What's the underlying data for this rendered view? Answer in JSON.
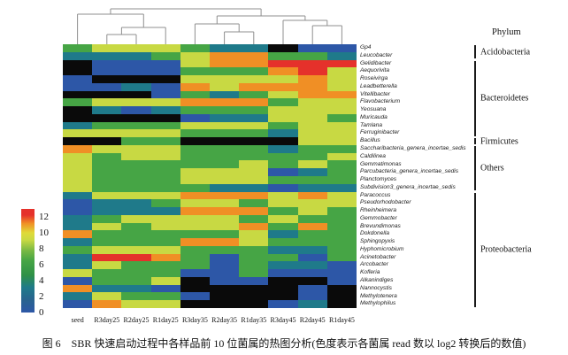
{
  "figure": {
    "caption": "图 6　SBR 快速启动过程中各样品前 10 位菌属的热图分析(色度表示各菌属 read 数以 log2 转换后的数值)",
    "phylum_header": "Phylum"
  },
  "chart_data": {
    "type": "heatmap",
    "title": "",
    "value_note": "cell color = log2-transformed read count; black = 0 / absent",
    "columns": [
      "seed",
      "R3day25",
      "R2day25",
      "R1day25",
      "R3day35",
      "R2day35",
      "R1day35",
      "R3day45",
      "R2day45",
      "R1day45"
    ],
    "rows": [
      "Gp4",
      "Leucobacter",
      "Gelidibacter",
      "Aequorivita",
      "Roseivirga",
      "Leadbetterella",
      "Vitellibacter",
      "Flavobacterium",
      "Yeosuana",
      "Muricauda",
      "Tamlana",
      "Ferruginibacter",
      "Bacillus",
      "Saccharibacteria_genera_incertae_sedis",
      "Caldilinea",
      "Gemmatimonas",
      "Parcubacteria_genera_incertae_sedis",
      "Planctomyces",
      "Subdivision3_genera_incertae_sedis",
      "Paracoccus",
      "Pseudorhodobacter",
      "Rheinheimera",
      "Gemmobacter",
      "Brevundimonas",
      "Dokdonella",
      "Sphingopyxis",
      "Hyphomicrobium",
      "Acinetobacter",
      "Arcobacter",
      "Kofleria",
      "Alkanindiges",
      "Nannocystis",
      "Methylotenera",
      "Methylophilus"
    ],
    "phyla": [
      {
        "label": "Acidobacteria",
        "start": 0,
        "end": 1
      },
      {
        "label": "Bacteroidetes",
        "start": 2,
        "end": 11
      },
      {
        "label": "Firmicutes",
        "start": 12,
        "end": 12
      },
      {
        "label": "Others",
        "start": 13,
        "end": 18
      },
      {
        "label": "Proteobacteria",
        "start": 19,
        "end": 33
      }
    ],
    "palette": {
      "K": "#0a0a0a",
      "B": "#2d57a7",
      "T": "#1f7a8a",
      "G": "#46a545",
      "YG": "#c8d943",
      "O": "#f08f25",
      "R": "#e5312b"
    },
    "value_bins": {
      "K": 0,
      "B": 1,
      "T": 3,
      "G": 6,
      "YG": 9,
      "O": 11,
      "R": 12.5
    },
    "cells": [
      [
        "G",
        "YG",
        "YG",
        "YG",
        "G",
        "T",
        "T",
        "K",
        "B",
        "B"
      ],
      [
        "T",
        "T",
        "T",
        "G",
        "YG",
        "O",
        "O",
        "G",
        "G",
        "T"
      ],
      [
        "K",
        "B",
        "B",
        "B",
        "YG",
        "O",
        "O",
        "R",
        "R",
        "R"
      ],
      [
        "K",
        "B",
        "B",
        "B",
        "G",
        "G",
        "G",
        "O",
        "R",
        "YG"
      ],
      [
        "B",
        "K",
        "K",
        "K",
        "YG",
        "YG",
        "YG",
        "YG",
        "O",
        "YG"
      ],
      [
        "B",
        "B",
        "T",
        "B",
        "O",
        "YG",
        "O",
        "O",
        "O",
        "YG"
      ],
      [
        "K",
        "K",
        "K",
        "B",
        "G",
        "T",
        "G",
        "YG",
        "O",
        "O"
      ],
      [
        "G",
        "YG",
        "YG",
        "YG",
        "O",
        "O",
        "O",
        "G",
        "YG",
        "YG"
      ],
      [
        "K",
        "T",
        "B",
        "T",
        "G",
        "G",
        "G",
        "YG",
        "YG",
        "YG"
      ],
      [
        "K",
        "K",
        "K",
        "K",
        "B",
        "T",
        "T",
        "YG",
        "YG",
        "G"
      ],
      [
        "T",
        "G",
        "G",
        "G",
        "YG",
        "YG",
        "YG",
        "G",
        "YG",
        "YG"
      ],
      [
        "YG",
        "YG",
        "YG",
        "YG",
        "G",
        "G",
        "G",
        "T",
        "YG",
        "YG"
      ],
      [
        "K",
        "K",
        "G",
        "G",
        "K",
        "K",
        "K",
        "K",
        "YG",
        "YG"
      ],
      [
        "O",
        "YG",
        "YG",
        "YG",
        "G",
        "G",
        "G",
        "T",
        "G",
        "G"
      ],
      [
        "YG",
        "G",
        "YG",
        "YG",
        "G",
        "G",
        "G",
        "G",
        "G",
        "YG"
      ],
      [
        "YG",
        "G",
        "G",
        "G",
        "G",
        "G",
        "YG",
        "G",
        "YG",
        "G"
      ],
      [
        "YG",
        "G",
        "G",
        "G",
        "YG",
        "YG",
        "YG",
        "B",
        "T",
        "G"
      ],
      [
        "YG",
        "G",
        "G",
        "G",
        "YG",
        "YG",
        "YG",
        "G",
        "G",
        "G"
      ],
      [
        "YG",
        "G",
        "G",
        "G",
        "G",
        "T",
        "T",
        "B",
        "T",
        "T"
      ],
      [
        "T",
        "YG",
        "YG",
        "YG",
        "O",
        "O",
        "O",
        "YG",
        "O",
        "YG"
      ],
      [
        "B",
        "T",
        "T",
        "G",
        "YG",
        "YG",
        "G",
        "YG",
        "YG",
        "YG"
      ],
      [
        "B",
        "T",
        "T",
        "T",
        "O",
        "O",
        "O",
        "G",
        "YG",
        "G"
      ],
      [
        "T",
        "G",
        "YG",
        "YG",
        "YG",
        "YG",
        "G",
        "YG",
        "G",
        "G"
      ],
      [
        "T",
        "YG",
        "G",
        "YG",
        "YG",
        "YG",
        "O",
        "G",
        "O",
        "G"
      ],
      [
        "O",
        "G",
        "G",
        "G",
        "G",
        "G",
        "YG",
        "T",
        "G",
        "G"
      ],
      [
        "T",
        "G",
        "G",
        "G",
        "O",
        "O",
        "YG",
        "G",
        "G",
        "G"
      ],
      [
        "G",
        "YG",
        "YG",
        "YG",
        "G",
        "G",
        "G",
        "T",
        "T",
        "G"
      ],
      [
        "T",
        "R",
        "R",
        "O",
        "G",
        "B",
        "G",
        "G",
        "B",
        "G"
      ],
      [
        "T",
        "YG",
        "G",
        "G",
        "G",
        "B",
        "G",
        "T",
        "T",
        "B"
      ],
      [
        "YG",
        "G",
        "G",
        "G",
        "B",
        "B",
        "G",
        "B",
        "B",
        "B"
      ],
      [
        "B",
        "G",
        "G",
        "YG",
        "K",
        "B",
        "B",
        "K",
        "K",
        "B"
      ],
      [
        "O",
        "T",
        "T",
        "B",
        "K",
        "K",
        "K",
        "K",
        "B",
        "K"
      ],
      [
        "T",
        "YG",
        "G",
        "G",
        "B",
        "K",
        "K",
        "K",
        "B",
        "K"
      ],
      [
        "B",
        "O",
        "YG",
        "YG",
        "K",
        "K",
        "K",
        "B",
        "T",
        "K"
      ]
    ],
    "legend": {
      "ticks": [
        12,
        10,
        8,
        6,
        4,
        2,
        0
      ],
      "min": 0,
      "max": 13,
      "gradient_stops": [
        {
          "pos": 0,
          "color": "#2d57a7"
        },
        {
          "pos": 12,
          "color": "#29638f"
        },
        {
          "pos": 24,
          "color": "#1f7a8a"
        },
        {
          "pos": 36,
          "color": "#2f9147"
        },
        {
          "pos": 50,
          "color": "#46a545"
        },
        {
          "pos": 60,
          "color": "#7ab944"
        },
        {
          "pos": 70,
          "color": "#c8d943"
        },
        {
          "pos": 77,
          "color": "#e0da39"
        },
        {
          "pos": 86,
          "color": "#f08f25"
        },
        {
          "pos": 94,
          "color": "#e5312b"
        },
        {
          "pos": 100,
          "color": "#e5312b"
        }
      ]
    },
    "col_dendrogram": {
      "y": 5,
      "l": {
        "y": 11,
        "l": 0,
        "r": {
          "y": 26,
          "l": {
            "y": 34,
            "l": 1,
            "r": 2
          },
          "r": 3
        }
      },
      "r": {
        "y": 13,
        "l": {
          "y": 22,
          "l": 4,
          "r": {
            "y": 31,
            "l": 5,
            "r": 6
          }
        },
        "r": {
          "y": 18,
          "l": 7,
          "r": {
            "y": 24,
            "l": 8,
            "r": 9
          }
        }
      }
    }
  }
}
